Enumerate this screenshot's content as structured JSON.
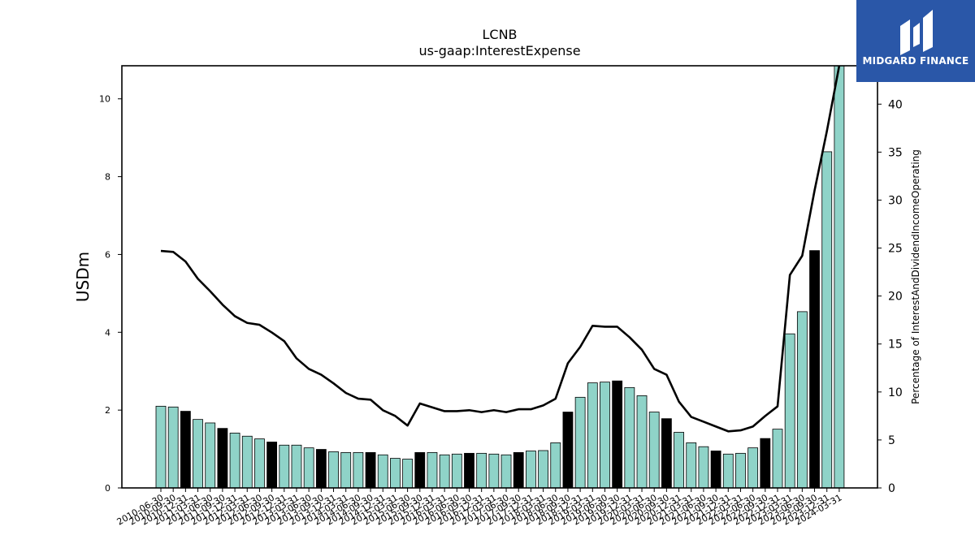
{
  "brand": {
    "name": "MIDGARD FINANCE",
    "logo_bg": "#2a57a8"
  },
  "chart_data": {
    "type": "bar",
    "title": "LCNB",
    "subtitle": "us-gaap:InterestExpense",
    "ylabel": "USDm",
    "y2label": "Percentage of InterestAndDividendIncomeOperating",
    "ylim": [
      0,
      10.85
    ],
    "y2lim": [
      0,
      44
    ],
    "yticks": [
      0,
      2,
      4,
      6,
      8,
      10
    ],
    "y2ticks": [
      0,
      5,
      10,
      15,
      20,
      25,
      30,
      35,
      40
    ],
    "colors": {
      "bar": "#8fd3c8",
      "bar_highlight": "#000000",
      "line": "#000000"
    },
    "categories": [
      "2010-06-30",
      "2010-09-30",
      "2010-12-31",
      "2011-03-31",
      "2011-06-30",
      "2011-09-30",
      "2011-12-31",
      "2012-03-31",
      "2012-06-30",
      "2012-09-30",
      "2012-12-31",
      "2013-03-31",
      "2013-06-30",
      "2013-09-30",
      "2013-12-31",
      "2014-03-31",
      "2014-06-30",
      "2014-09-30",
      "2014-12-31",
      "2015-03-31",
      "2015-06-30",
      "2015-09-30",
      "2015-12-31",
      "2016-03-31",
      "2016-06-30",
      "2016-09-30",
      "2016-12-31",
      "2017-03-31",
      "2017-06-30",
      "2017-09-30",
      "2017-12-31",
      "2018-03-31",
      "2018-06-30",
      "2018-09-30",
      "2018-12-31",
      "2019-03-31",
      "2019-06-30",
      "2019-09-30",
      "2019-12-31",
      "2020-03-31",
      "2020-06-30",
      "2020-09-30",
      "2020-12-31",
      "2021-03-31",
      "2021-06-30",
      "2021-09-30",
      "2021-12-31",
      "2022-03-31",
      "2022-06-30",
      "2022-09-30",
      "2022-12-31",
      "2023-03-31",
      "2023-06-30",
      "2023-09-30",
      "2023-12-31",
      "2024-03-31"
    ],
    "tick_labels": [
      "2010-06-30",
      "2010-09-30",
      "2010-12-31",
      "2011-03-31",
      "2011-06-30",
      "2011-09-30",
      "2011-12-31",
      "2012-03-31",
      "2012-06-30",
      "2012-09-30",
      "2012-12-31",
      "2013-03-31",
      "2013-06-30",
      "2013-09-30",
      "2013-12-31",
      "2014-03-31",
      "2014-06-30",
      "2014-09-30",
      "2014-12-31",
      "2015-03-31",
      "2015-06-30",
      "2015-09-30",
      "2015-12-31",
      "2016-03-31",
      "2016-06-30",
      "2016-09-30",
      "2016-12-31",
      "2017-03-31",
      "2017-06-30",
      "2017-09-30",
      "2017-12-31",
      "2018-03-31",
      "2018-06-30",
      "2018-09-30",
      "2018-12-31",
      "2019-03-31",
      "2019-06-30",
      "2019-09-30",
      "2019-12-31",
      "2020-03-31",
      "2020-06-30",
      "2020-09-30",
      "2020-12-31",
      "2021-03-31",
      "2021-06-30",
      "2021-09-30",
      "2021-12-31",
      "2022-03-31",
      "2022-06-30",
      "2022-09-30",
      "2022-12-31",
      "2023-03-31",
      "2023-06-30",
      "2023-09-30",
      "2023-12-31",
      "2024-03-31"
    ],
    "series": [
      {
        "axis": "left",
        "type": "bar",
        "values": [
          2.1,
          2.08,
          1.97,
          1.76,
          1.67,
          1.53,
          1.41,
          1.33,
          1.26,
          1.18,
          1.1,
          1.1,
          1.03,
          0.99,
          0.93,
          0.91,
          0.91,
          0.91,
          0.85,
          0.76,
          0.74,
          0.91,
          0.91,
          0.85,
          0.87,
          0.89,
          0.89,
          0.87,
          0.85,
          0.91,
          0.95,
          0.96,
          1.16,
          1.95,
          2.33,
          2.7,
          2.72,
          2.75,
          2.58,
          2.37,
          1.95,
          1.78,
          1.43,
          1.16,
          1.06,
          0.95,
          0.87,
          0.89,
          1.03,
          1.27,
          1.51,
          3.96,
          4.53,
          6.1,
          8.64,
          10.85
        ],
        "highlight": [
          false,
          false,
          true,
          false,
          false,
          true,
          false,
          false,
          false,
          true,
          false,
          false,
          false,
          true,
          false,
          false,
          false,
          true,
          false,
          false,
          false,
          true,
          false,
          false,
          false,
          true,
          false,
          false,
          false,
          true,
          false,
          false,
          false,
          true,
          false,
          false,
          false,
          true,
          false,
          false,
          false,
          true,
          false,
          false,
          false,
          true,
          false,
          false,
          false,
          true,
          false,
          false,
          false,
          true,
          false,
          false
        ]
      },
      {
        "axis": "right",
        "type": "line",
        "values": [
          24.7,
          24.6,
          23.6,
          21.8,
          20.5,
          19.1,
          17.9,
          17.2,
          17.0,
          16.2,
          15.3,
          13.5,
          12.4,
          11.8,
          10.9,
          9.9,
          9.3,
          9.2,
          8.1,
          7.5,
          6.5,
          8.8,
          8.4,
          8.0,
          8.0,
          8.1,
          7.9,
          8.1,
          7.9,
          8.2,
          8.2,
          8.6,
          9.3,
          13.0,
          14.7,
          16.9,
          16.8,
          16.8,
          15.7,
          14.4,
          12.4,
          11.8,
          9.0,
          7.4,
          6.9,
          6.4,
          5.9,
          6.0,
          6.4,
          7.5,
          8.5,
          22.2,
          24.2,
          31.0,
          37.2,
          44.0
        ]
      }
    ]
  }
}
